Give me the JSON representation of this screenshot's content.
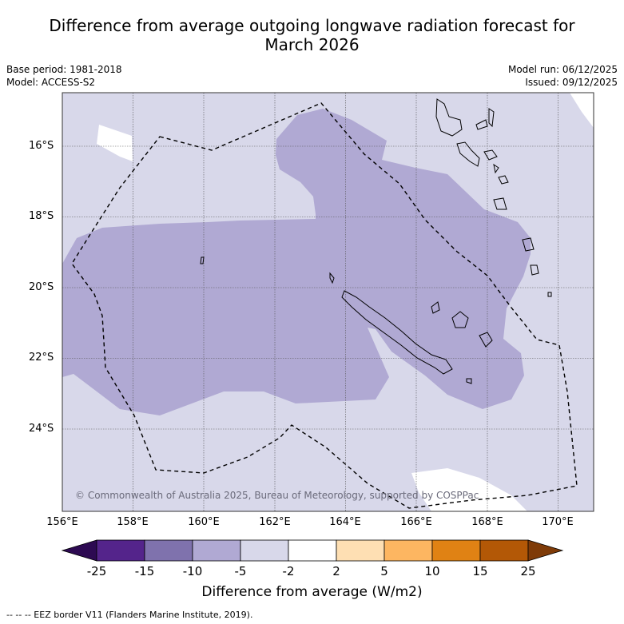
{
  "title_line1": "Difference from average outgoing longwave radiation forecast for",
  "title_line2": "March 2026",
  "base_period": "Base period: 1981-2018",
  "model": "Model: ACCESS-S2",
  "model_run": "Model run: 06/12/2025",
  "issued": "Issued: 09/12/2025",
  "copyright": "© Commonwealth of Australia 2025, Bureau of Meteorology, supported by COSPPac",
  "lat_labels": [
    "16°S",
    "18°S",
    "20°S",
    "22°S",
    "24°S"
  ],
  "lon_labels": [
    "156°E",
    "158°E",
    "160°E",
    "162°E",
    "164°E",
    "166°E",
    "168°E",
    "170°E"
  ],
  "colorbar": {
    "ticks": [
      "-25",
      "-15",
      "-10",
      "-5",
      "-2",
      "2",
      "5",
      "10",
      "15",
      "25"
    ],
    "colors": [
      "#2d0a52",
      "#54248b",
      "#7f72ad",
      "#b0a9d3",
      "#d8d8ea",
      "#ffffff",
      "#fedfb3",
      "#fdb661",
      "#e08214",
      "#b35806",
      "#7f3b08"
    ],
    "label": "Difference from average (W/m2)"
  },
  "legend_eez": "--  --  -- EEZ border V11 (Flanders Marine Institute, 2019)."
}
